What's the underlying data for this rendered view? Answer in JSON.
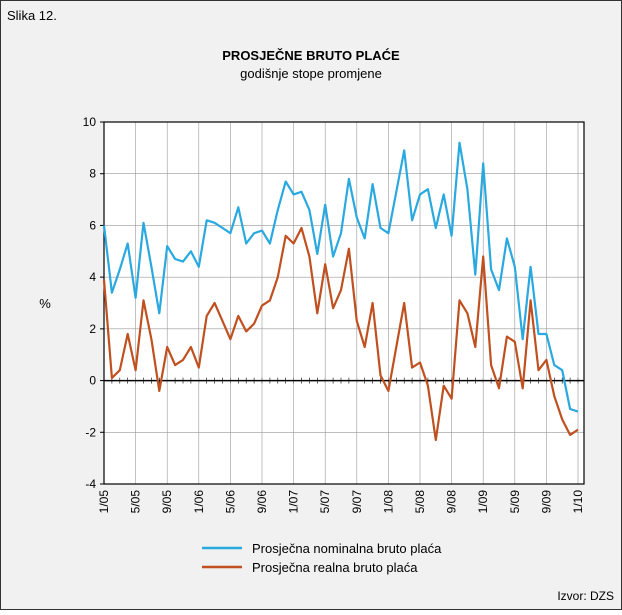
{
  "figure_label": "Slika 12.",
  "source": "Izvor: DZS",
  "chart_data": {
    "type": "line",
    "title": "PROSJEČNE BRUTO PLAĆE",
    "subtitle": "godišnje stope promjene",
    "y_label": "%",
    "categories": [
      "1/05",
      null,
      null,
      null,
      "5/05",
      null,
      null,
      null,
      "9/05",
      null,
      null,
      null,
      "1/06",
      null,
      null,
      null,
      "5/06",
      null,
      null,
      null,
      "9/06",
      null,
      null,
      null,
      "1/07",
      null,
      null,
      null,
      "5/07",
      null,
      null,
      null,
      "9/07",
      null,
      null,
      null,
      "1/08",
      null,
      null,
      null,
      "5/08",
      null,
      null,
      null,
      "9/08",
      null,
      null,
      null,
      "1/09",
      null,
      null,
      null,
      "5/09",
      null,
      null,
      null,
      "9/09",
      null,
      null,
      null,
      "1/10"
    ],
    "series": [
      {
        "name": "Prosječna nominalna bruto plaća",
        "color": "#29a9e0",
        "values": [
          6.0,
          3.4,
          4.3,
          5.3,
          3.2,
          6.1,
          4.4,
          2.6,
          5.2,
          4.7,
          4.6,
          5.0,
          4.4,
          6.2,
          6.1,
          5.9,
          5.7,
          6.7,
          5.3,
          5.7,
          5.8,
          5.3,
          6.6,
          7.7,
          7.2,
          7.3,
          6.6,
          4.9,
          6.8,
          4.8,
          5.7,
          7.8,
          6.3,
          5.5,
          7.6,
          5.9,
          5.7,
          7.3,
          8.9,
          6.2,
          7.2,
          7.4,
          5.9,
          7.2,
          5.6,
          9.2,
          7.4,
          4.1,
          8.4,
          4.3,
          3.5,
          5.5,
          4.4,
          1.6,
          4.4,
          1.8,
          1.8,
          0.6,
          0.4,
          -1.1,
          -1.2
        ]
      },
      {
        "name": "Prosječna realna bruto plaća",
        "color": "#c0501f",
        "values": [
          3.9,
          0.1,
          0.4,
          1.8,
          0.4,
          3.1,
          1.6,
          -0.4,
          1.3,
          0.6,
          0.8,
          1.3,
          0.5,
          2.5,
          3.0,
          2.3,
          1.6,
          2.5,
          1.9,
          2.2,
          2.9,
          3.1,
          4.0,
          5.6,
          5.3,
          5.9,
          4.8,
          2.6,
          4.5,
          2.8,
          3.5,
          5.1,
          2.3,
          1.3,
          3.0,
          0.2,
          -0.4,
          1.3,
          3.0,
          0.5,
          0.7,
          -0.2,
          -2.3,
          -0.2,
          -0.7,
          3.1,
          2.6,
          1.3,
          4.8,
          0.6,
          -0.3,
          1.7,
          1.5,
          -0.3,
          3.1,
          0.4,
          0.8,
          -0.6,
          -1.5,
          -2.1,
          -1.9
        ]
      }
    ],
    "ylim": [
      -4,
      10
    ],
    "yticks": [
      -4,
      -2,
      0,
      2,
      4,
      6,
      8,
      10
    ],
    "grid": true,
    "legend": "bottom"
  }
}
